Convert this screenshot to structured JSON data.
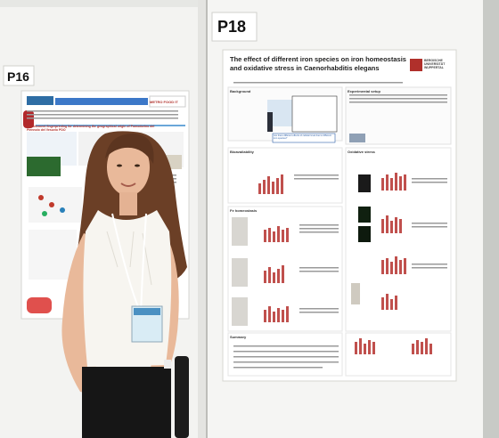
{
  "labels": {
    "left_board": "P16",
    "right_board": "P18"
  },
  "poster_p18": {
    "title_line1": "The effect of different iron species on iron homeostasis",
    "title_line2": "and oxidative stress in Caenorhabditis elegans",
    "logo_text": "BERGISCHE UNIVERSITÄT WUPPERTAL",
    "sections": [
      "Background",
      "Experimental setup",
      "Bioavailability",
      "Oxidative stress",
      "Fe homeostasis",
      "Summary"
    ],
    "question_box": "Are there different effects of cellular level due to different iron species?"
  },
  "poster_p16": {
    "title": "Multielement fingerprinting for determining the geographical origin of Pomodorino del Piennolo del Vesuvio PDO",
    "logo_text": "METRO FOOD IT"
  },
  "colors": {
    "board_white": "#f4f4f2",
    "poster_bg": "#ffffff",
    "accent_red": "#b0302b",
    "bar_red": "#c0504d",
    "shirt": "#f7f5f0",
    "hair": "#6b3f26"
  }
}
